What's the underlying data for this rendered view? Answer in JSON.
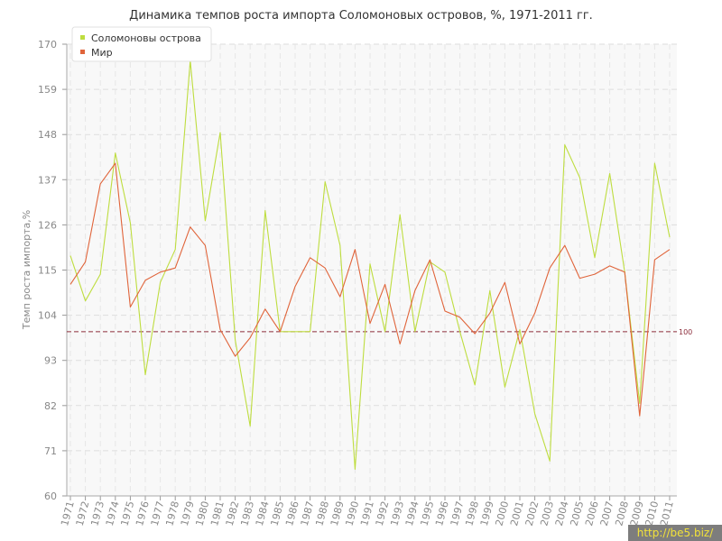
{
  "chart_data": {
    "type": "line",
    "title": "Динамика темпов роста импорта Соломоновых островов, %, 1971-2011 гг.",
    "ylabel": "Темп роста импорта,%",
    "xlabel": "",
    "ylim": [
      60,
      170
    ],
    "yticks": [
      "170",
      "159",
      "148",
      "137",
      "126",
      "115",
      "104",
      "93",
      "82",
      "71",
      "60"
    ],
    "x": [
      "1971",
      "1972",
      "1973",
      "1974",
      "1975",
      "1976",
      "1977",
      "1978",
      "1979",
      "1980",
      "1981",
      "1982",
      "1983",
      "1984",
      "1985",
      "1986",
      "1987",
      "1988",
      "1989",
      "1990",
      "1991",
      "1992",
      "1993",
      "1994",
      "1995",
      "1996",
      "1997",
      "1998",
      "1999",
      "2000",
      "2001",
      "2002",
      "2003",
      "2004",
      "2005",
      "2006",
      "2007",
      "2008",
      "2009",
      "2010",
      "2011"
    ],
    "series": [
      {
        "name": "Соломоновы острова",
        "color": "#bedd3f",
        "values": [
          118.5,
          107.5,
          114,
          143.5,
          126.5,
          89.5,
          112,
          120,
          166,
          127,
          148.5,
          98,
          77,
          129.5,
          100,
          100,
          100,
          136.5,
          121,
          66.5,
          116.5,
          100,
          128.5,
          100,
          117,
          114.5,
          100,
          87,
          110,
          86.5,
          100.5,
          80,
          68.5,
          145.5,
          137.5,
          118,
          138.5,
          114.5,
          82.5,
          141,
          123
        ]
      },
      {
        "name": "Мир",
        "color": "#e0643a",
        "values": [
          111.5,
          117,
          136,
          141,
          106,
          112.5,
          114.5,
          115.5,
          125.5,
          121,
          100.5,
          94,
          98.5,
          105.5,
          100,
          111,
          118,
          115.5,
          108.5,
          120,
          102,
          111.5,
          97,
          110,
          117.5,
          105,
          103.5,
          99.5,
          104.5,
          112,
          97,
          104.5,
          115.5,
          121,
          113,
          114,
          116,
          114.5,
          79.5,
          117.5,
          120
        ]
      }
    ],
    "reference_line": {
      "value": 100,
      "label": "100",
      "color": "#8b2c3a"
    },
    "legend": "top-left",
    "grid": true
  },
  "watermark": "http://be5.biz/"
}
